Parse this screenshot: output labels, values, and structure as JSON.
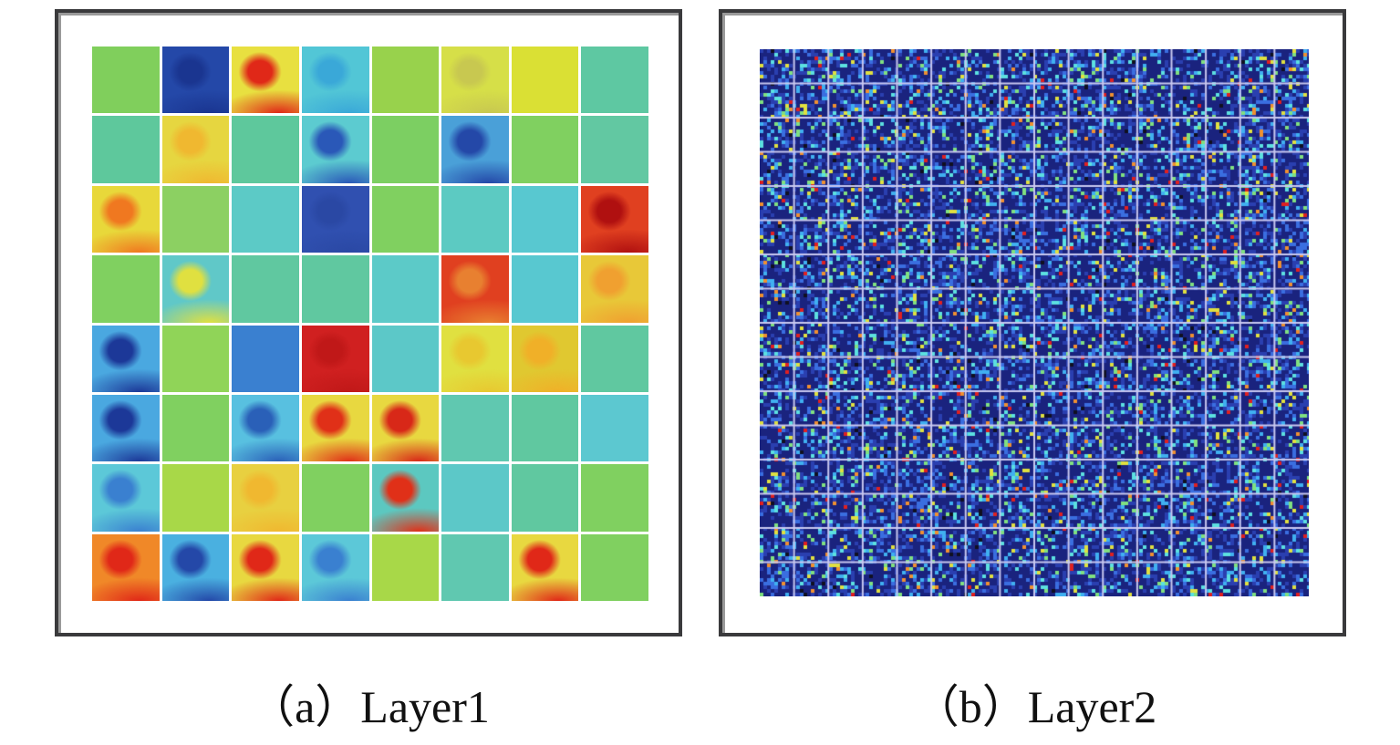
{
  "captions": {
    "a": "（a）Layer1",
    "b": "（b）Layer2"
  },
  "layer1": {
    "rows": 8,
    "cols": 8,
    "tiles": [
      [
        {
          "bg": "#80cf5c"
        },
        {
          "bg": "#2448a8",
          "fg": "#1a3590"
        },
        {
          "bg": "#e8e040",
          "fg": "#e02818"
        },
        {
          "bg": "#52c6d6",
          "fg": "#3aa8d8"
        },
        {
          "bg": "#98d24c"
        },
        {
          "bg": "#d6df48",
          "fg": "#c8c850"
        },
        {
          "bg": "#dae034"
        },
        {
          "bg": "#5ec8a2"
        }
      ],
      [
        {
          "bg": "#5ec89c"
        },
        {
          "bg": "#e6d640",
          "fg": "#f0b830"
        },
        {
          "bg": "#5ec89c"
        },
        {
          "bg": "#5ccbd0",
          "fg": "#2a58b8"
        },
        {
          "bg": "#7ccf62"
        },
        {
          "bg": "#4aa0d8",
          "fg": "#2448a8"
        },
        {
          "bg": "#80d060"
        },
        {
          "bg": "#62c8a2"
        }
      ],
      [
        {
          "bg": "#e8d83a",
          "fg": "#f07820"
        },
        {
          "bg": "#8cd062"
        },
        {
          "bg": "#5ccac6"
        },
        {
          "bg": "#3050b0",
          "fg": "#2a48a4"
        },
        {
          "bg": "#80d060"
        },
        {
          "bg": "#5ccac2"
        },
        {
          "bg": "#58c8d0"
        },
        {
          "bg": "#e04020",
          "fg": "#b01010"
        }
      ],
      [
        {
          "bg": "#80d060"
        },
        {
          "bg": "#60c8c8",
          "fg": "#e0e040"
        },
        {
          "bg": "#60c8a0"
        },
        {
          "bg": "#60c8a0"
        },
        {
          "bg": "#5ccac8"
        },
        {
          "bg": "#e04020",
          "fg": "#e88030"
        },
        {
          "bg": "#58c8d0"
        },
        {
          "bg": "#e8c838",
          "fg": "#f0a030"
        }
      ],
      [
        {
          "bg": "#4aa8e0",
          "fg": "#1c3898"
        },
        {
          "bg": "#90d458"
        },
        {
          "bg": "#3a80d0"
        },
        {
          "bg": "#d02020",
          "fg": "#c01818"
        },
        {
          "bg": "#5cc8c8"
        },
        {
          "bg": "#e0e040",
          "fg": "#e8c830"
        },
        {
          "bg": "#e0c830",
          "fg": "#f0b028"
        },
        {
          "bg": "#60c8a0"
        }
      ],
      [
        {
          "bg": "#4aa8e0",
          "fg": "#1c3898"
        },
        {
          "bg": "#80d060"
        },
        {
          "bg": "#58c0e0",
          "fg": "#2a60b8"
        },
        {
          "bg": "#e8d840",
          "fg": "#e03018"
        },
        {
          "bg": "#e8d840",
          "fg": "#d82818"
        },
        {
          "bg": "#60c8b0"
        },
        {
          "bg": "#60c8a0"
        },
        {
          "bg": "#5cc8d0"
        }
      ],
      [
        {
          "bg": "#5cc8d8",
          "fg": "#3a80d0"
        },
        {
          "bg": "#a8d848"
        },
        {
          "bg": "#e8d040",
          "fg": "#f0b830"
        },
        {
          "bg": "#80d060"
        },
        {
          "bg": "#5cc8c0",
          "fg": "#e03018"
        },
        {
          "bg": "#5cc8c8"
        },
        {
          "bg": "#60c8a0"
        },
        {
          "bg": "#80d060"
        }
      ],
      [
        {
          "bg": "#f08828",
          "fg": "#e02818"
        },
        {
          "bg": "#4ab0e0",
          "fg": "#2448a8"
        },
        {
          "bg": "#e8d840",
          "fg": "#e02818"
        },
        {
          "bg": "#5cc8d8",
          "fg": "#3a80d0"
        },
        {
          "bg": "#a8d848"
        },
        {
          "bg": "#60c8b0"
        },
        {
          "bg": "#e8d840",
          "fg": "#e02818"
        },
        {
          "bg": "#80d060"
        }
      ]
    ]
  },
  "layer2": {
    "rows": 16,
    "cols": 16,
    "background": "#1a237e",
    "gridline": "#c8c8f0"
  }
}
